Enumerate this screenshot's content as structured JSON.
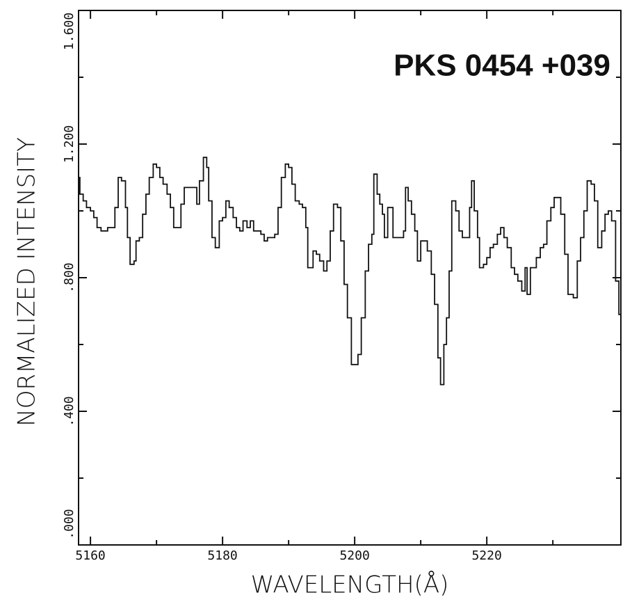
{
  "chart_data": {
    "type": "line",
    "step": "after",
    "title": "PKS 0454 +039",
    "xlabel": "WAVELENGTH(Å)",
    "ylabel": "NORMALIZED INTENSITY",
    "color": "#111111",
    "x": [
      5158.2,
      5158.4,
      5158.9,
      5159.4,
      5160.0,
      5160.5,
      5161.0,
      5161.6,
      5162.1,
      5162.6,
      5163.1,
      5163.7,
      5164.2,
      5164.7,
      5165.3,
      5165.6,
      5166.0,
      5166.6,
      5166.9,
      5167.4,
      5167.9,
      5168.4,
      5168.9,
      5169.5,
      5170.0,
      5170.5,
      5171.0,
      5171.6,
      5172.1,
      5172.6,
      5173.1,
      5173.7,
      5174.2,
      5174.7,
      5175.2,
      5175.8,
      5176.1,
      5176.5,
      5177.1,
      5177.6,
      5177.9,
      5178.4,
      5178.9,
      5179.5,
      5180.0,
      5180.5,
      5181.0,
      5181.6,
      5182.1,
      5182.6,
      5183.1,
      5183.7,
      5184.2,
      5184.7,
      5185.3,
      5185.8,
      5186.3,
      5186.8,
      5187.4,
      5187.9,
      5188.4,
      5188.9,
      5189.5,
      5190.0,
      5190.5,
      5191.0,
      5191.6,
      5192.1,
      5192.6,
      5192.9,
      5193.7,
      5194.2,
      5194.7,
      5195.3,
      5195.8,
      5196.3,
      5196.8,
      5197.4,
      5197.9,
      5198.4,
      5198.9,
      5199.5,
      5200.0,
      5200.5,
      5201.0,
      5201.6,
      5202.1,
      5202.6,
      5202.9,
      5203.4,
      5203.8,
      5204.2,
      5204.5,
      5205.0,
      5205.6,
      5205.8,
      5206.3,
      5206.8,
      5207.4,
      5207.7,
      5208.1,
      5208.6,
      5209.1,
      5209.5,
      5210.0,
      5210.5,
      5211.0,
      5211.6,
      5212.1,
      5212.6,
      5213.0,
      5213.5,
      5213.9,
      5214.3,
      5214.7,
      5215.3,
      5215.8,
      5216.3,
      5216.8,
      5217.4,
      5217.7,
      5218.1,
      5218.6,
      5218.9,
      5219.5,
      5220.0,
      5220.5,
      5221.0,
      5221.6,
      5222.1,
      5222.6,
      5223.1,
      5223.7,
      5224.2,
      5224.7,
      5225.3,
      5225.8,
      5226.1,
      5226.6,
      5227.1,
      5227.5,
      5228.1,
      5228.6,
      5229.1,
      5229.7,
      5230.2,
      5230.7,
      5231.2,
      5231.8,
      5232.3,
      5233.1,
      5233.7,
      5234.2,
      5234.7,
      5235.2,
      5235.8,
      5236.3,
      5236.8,
      5237.4,
      5237.9,
      5238.4,
      5238.9,
      5239.5,
      5240.0
    ],
    "values": [
      1.1,
      1.05,
      1.03,
      1.01,
      1.0,
      0.98,
      0.95,
      0.94,
      0.94,
      0.95,
      0.95,
      1.01,
      1.1,
      1.09,
      1.01,
      0.92,
      0.84,
      0.85,
      0.91,
      0.92,
      0.99,
      1.05,
      1.1,
      1.14,
      1.13,
      1.1,
      1.08,
      1.05,
      1.01,
      0.95,
      0.95,
      1.02,
      1.07,
      1.07,
      1.07,
      1.07,
      1.02,
      1.09,
      1.16,
      1.13,
      1.03,
      0.92,
      0.89,
      0.97,
      0.98,
      1.03,
      1.01,
      0.98,
      0.95,
      0.94,
      0.97,
      0.95,
      0.97,
      0.94,
      0.94,
      0.93,
      0.91,
      0.92,
      0.92,
      0.93,
      1.01,
      1.1,
      1.14,
      1.13,
      1.08,
      1.03,
      1.02,
      1.01,
      0.95,
      0.83,
      0.88,
      0.87,
      0.85,
      0.82,
      0.85,
      0.94,
      1.02,
      1.01,
      0.91,
      0.78,
      0.68,
      0.54,
      0.54,
      0.57,
      0.68,
      0.82,
      0.9,
      0.93,
      1.11,
      1.05,
      1.02,
      0.99,
      0.92,
      1.01,
      1.01,
      0.92,
      0.92,
      0.92,
      0.94,
      1.07,
      1.03,
      0.99,
      0.94,
      0.85,
      0.91,
      0.91,
      0.88,
      0.81,
      0.72,
      0.56,
      0.48,
      0.6,
      0.68,
      0.82,
      1.03,
      1.0,
      0.94,
      0.92,
      0.92,
      1.01,
      1.09,
      1.0,
      0.92,
      0.83,
      0.84,
      0.86,
      0.89,
      0.9,
      0.93,
      0.95,
      0.92,
      0.89,
      0.83,
      0.81,
      0.79,
      0.76,
      0.83,
      0.75,
      0.83,
      0.83,
      0.86,
      0.89,
      0.9,
      0.97,
      1.01,
      1.04,
      1.04,
      0.99,
      0.87,
      0.75,
      0.74,
      0.85,
      0.92,
      1.0,
      1.09,
      1.08,
      1.03,
      0.89,
      0.94,
      0.99,
      1.0,
      0.97,
      0.79,
      0.69
    ],
    "xlim": [
      5158.2,
      5240.3
    ],
    "ylim": [
      0,
      1.6
    ],
    "xticks": [
      5160,
      5180,
      5200,
      5220
    ],
    "xminorticks": [
      5170,
      5190,
      5210,
      5230
    ],
    "yticks": [
      {
        "value": 0,
        "label": ".000"
      },
      {
        "value": 0.4,
        "label": ".400"
      },
      {
        "value": 0.8,
        "label": ".800"
      },
      {
        "value": 1.2,
        "label": "1.200"
      },
      {
        "value": 1.6,
        "label": "1.600"
      }
    ],
    "yminorticks": [
      0.2,
      0.6,
      1.0,
      1.4
    ],
    "grid": false
  }
}
